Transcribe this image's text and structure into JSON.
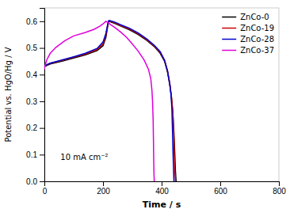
{
  "chart_data": {
    "type": "line",
    "xlabel": "Time / s",
    "ylabel": "Potential vs. HgO/Hg / V",
    "xlim": [
      0,
      800
    ],
    "ylim": [
      0.0,
      0.65
    ],
    "xticks": [
      0,
      200,
      400,
      600,
      800
    ],
    "yticks": [
      {
        "value": 0.0,
        "label": "0.0"
      },
      0.1,
      0.2,
      0.3,
      0.4,
      0.5,
      0.6
    ],
    "legend": "upper right",
    "annotations": [
      {
        "text": "10 mA cm⁻²",
        "x": 55,
        "y": 0.08
      }
    ],
    "series": [
      {
        "name": "ZnCo-0",
        "color": "black",
        "x": [
          0,
          20,
          60,
          100,
          140,
          180,
          200,
          210,
          215,
          218,
          220,
          225,
          240,
          260,
          290,
          320,
          350,
          375,
          395,
          410,
          420,
          428,
          433,
          438,
          442,
          445,
          447,
          449,
          450
        ],
        "values": [
          0.43,
          0.44,
          0.45,
          0.462,
          0.474,
          0.49,
          0.508,
          0.54,
          0.575,
          0.595,
          0.6,
          0.598,
          0.592,
          0.582,
          0.568,
          0.55,
          0.528,
          0.505,
          0.48,
          0.45,
          0.41,
          0.36,
          0.32,
          0.26,
          0.18,
          0.1,
          0.04,
          0.005,
          0.0
        ]
      },
      {
        "name": "ZnCo-19",
        "color": "#cc0000",
        "x": [
          0,
          20,
          60,
          100,
          140,
          180,
          200,
          210,
          215,
          218,
          220,
          225,
          240,
          260,
          290,
          320,
          350,
          375,
          395,
          410,
          420,
          428,
          433,
          438,
          441,
          443,
          445,
          447,
          448
        ],
        "values": [
          0.432,
          0.442,
          0.453,
          0.465,
          0.477,
          0.494,
          0.515,
          0.548,
          0.58,
          0.597,
          0.601,
          0.6,
          0.594,
          0.584,
          0.571,
          0.553,
          0.53,
          0.507,
          0.483,
          0.452,
          0.413,
          0.363,
          0.322,
          0.262,
          0.18,
          0.1,
          0.04,
          0.005,
          0.0
        ]
      },
      {
        "name": "ZnCo-28",
        "color": "#0000cc",
        "x": [
          0,
          20,
          60,
          100,
          140,
          180,
          200,
          210,
          215,
          218,
          220,
          225,
          240,
          260,
          290,
          320,
          350,
          375,
          395,
          410,
          420,
          428,
          432,
          435,
          437,
          439,
          441,
          442
        ],
        "values": [
          0.433,
          0.443,
          0.455,
          0.467,
          0.48,
          0.498,
          0.522,
          0.555,
          0.583,
          0.598,
          0.603,
          0.602,
          0.597,
          0.587,
          0.574,
          0.556,
          0.533,
          0.51,
          0.486,
          0.454,
          0.415,
          0.364,
          0.322,
          0.27,
          0.19,
          0.1,
          0.03,
          0.0
        ]
      },
      {
        "name": "ZnCo-37",
        "color": "#dd00dd",
        "x": [
          0,
          3,
          8,
          20,
          40,
          70,
          100,
          140,
          170,
          190,
          200,
          207,
          210,
          213,
          218,
          225,
          240,
          260,
          280,
          300,
          320,
          340,
          355,
          363,
          367,
          369,
          371,
          372,
          373,
          374,
          375
        ],
        "values": [
          0.42,
          0.435,
          0.455,
          0.48,
          0.503,
          0.527,
          0.545,
          0.558,
          0.57,
          0.582,
          0.59,
          0.597,
          0.6,
          0.598,
          0.594,
          0.588,
          0.577,
          0.56,
          0.54,
          0.515,
          0.488,
          0.455,
          0.42,
          0.385,
          0.34,
          0.3,
          0.23,
          0.16,
          0.08,
          0.02,
          0.0
        ]
      }
    ]
  }
}
